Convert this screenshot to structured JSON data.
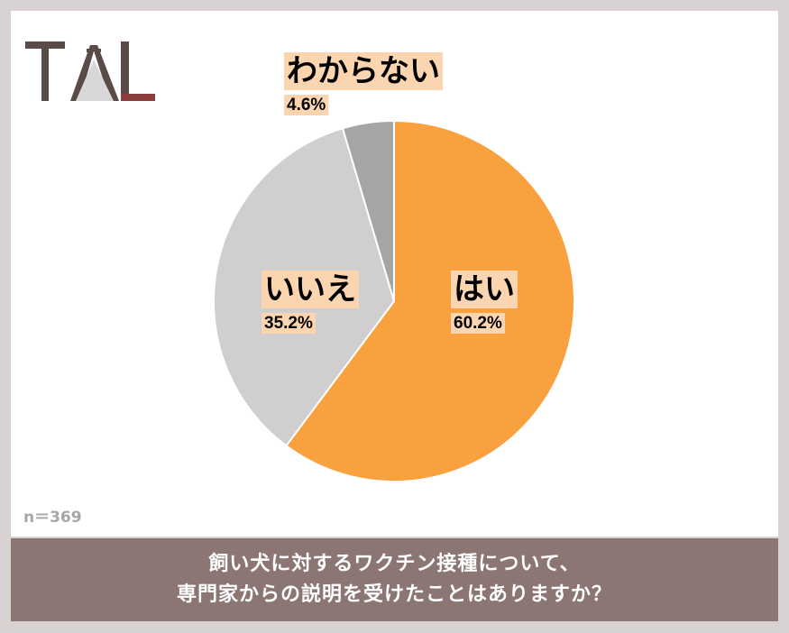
{
  "chart_data": {
    "type": "pie",
    "slices": [
      {
        "label": "はい",
        "value": 60.2,
        "display": "60.2%",
        "color": "#f8a13e"
      },
      {
        "label": "いいえ",
        "value": 35.2,
        "display": "35.2%",
        "color": "#d0cece"
      },
      {
        "label": "わからない",
        "value": 4.6,
        "display": "4.6%",
        "color": "#a5a5a5"
      }
    ],
    "start_angle_deg": 0,
    "direction": "clockwise",
    "label_background": "#fbd4b0",
    "sample": "n＝369",
    "title_lines": [
      "飼い犬に対するワクチン接種について、",
      "専門家からの説明を受けたことはありますか？"
    ]
  }
}
